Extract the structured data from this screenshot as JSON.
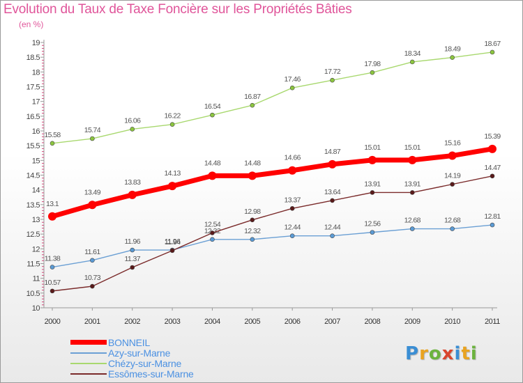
{
  "chart_data": {
    "type": "line",
    "title": "Evolution du Taux de Taxe Foncière sur les Propriétés Bâties",
    "subtitle": "(en %)",
    "xlabel": "",
    "ylabel": "",
    "x": [
      "2000",
      "2001",
      "2002",
      "2003",
      "2004",
      "2005",
      "2006",
      "2007",
      "2008",
      "2009",
      "2010",
      "2011"
    ],
    "ylim": [
      10,
      19
    ],
    "yticks": [
      "10",
      "10.5",
      "11",
      "11.5",
      "12",
      "12.5",
      "13",
      "13.5",
      "14",
      "14.5",
      "15",
      "15.5",
      "16",
      "16.5",
      "17",
      "17.5",
      "18",
      "18.5",
      "19"
    ],
    "grid": false,
    "legend_position": "bottom-left",
    "series": [
      {
        "name": "BONNEIL",
        "color": "#ff0000",
        "marker_color": "#ff0000",
        "values": [
          13.1,
          13.49,
          13.83,
          14.13,
          14.48,
          14.48,
          14.66,
          14.87,
          15.01,
          15.01,
          15.16,
          15.39
        ],
        "labels": [
          "13.1",
          "13.49",
          "13.83",
          "14.13",
          "14.48",
          "14.48",
          "14.66",
          "14.87",
          "15.01",
          "15.01",
          "15.16",
          "15.39"
        ]
      },
      {
        "name": "Azy-sur-Marne",
        "color": "#6a9fd4",
        "marker_color": "#5b9bd5",
        "values": [
          11.38,
          11.61,
          11.96,
          11.96,
          12.32,
          12.32,
          12.44,
          12.44,
          12.56,
          12.68,
          12.68,
          12.81
        ],
        "labels": [
          "11.38",
          "11.61",
          "11.96",
          "11.96",
          "12.32",
          "12.32",
          "12.44",
          "12.44",
          "12.56",
          "12.68",
          "12.68",
          "12.81"
        ]
      },
      {
        "name": "Chézy-sur-Marne",
        "color": "#a8d86e",
        "marker_color": "#8cc63f",
        "values": [
          15.58,
          15.74,
          16.06,
          16.22,
          16.54,
          16.87,
          17.46,
          17.72,
          17.98,
          18.34,
          18.49,
          18.67
        ],
        "labels": [
          "15.58",
          "15.74",
          "16.06",
          "16.22",
          "16.54",
          "16.87",
          "17.46",
          "17.72",
          "17.98",
          "18.34",
          "18.49",
          "18.67"
        ]
      },
      {
        "name": "Essômes-sur-Marne",
        "color": "#7a2a2a",
        "marker_color": "#5a1a1a",
        "values": [
          10.57,
          10.73,
          11.37,
          11.94,
          12.54,
          12.98,
          13.37,
          13.64,
          13.91,
          13.91,
          14.19,
          14.47
        ],
        "labels": [
          "10.57",
          "10.73",
          "11.37",
          "11.94",
          "12.54",
          "12.98",
          "13.37",
          "13.64",
          "13.91",
          "13.91",
          "14.19",
          "14.47"
        ]
      }
    ]
  },
  "logo": {
    "text": "Proxiti"
  }
}
